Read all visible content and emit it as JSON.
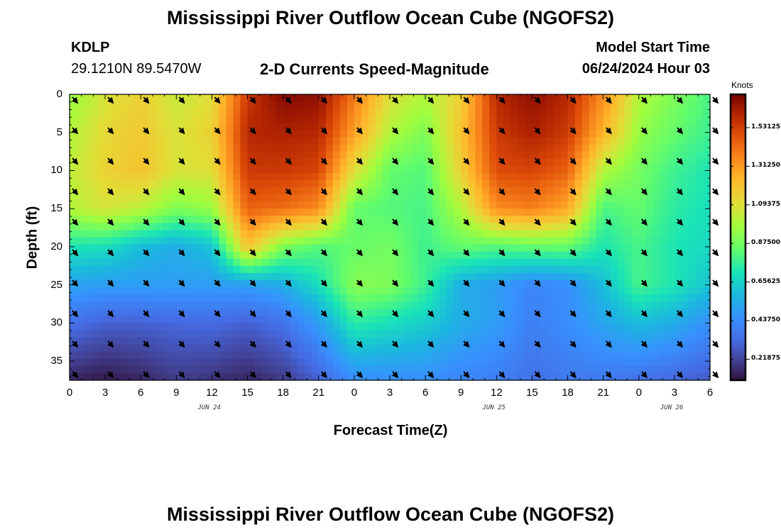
{
  "header": {
    "title": "Mississippi River Outflow Ocean Cube (NGOFS2)",
    "station": "KDLP",
    "coords": "29.1210N  89.5470W",
    "subtitle": "2-D Currents Speed-Magnitude",
    "model_start_label": "Model Start Time",
    "model_start_value": "06/24/2024 Hour 03"
  },
  "footer": {
    "title": "Mississippi River Outflow Ocean Cube (NGOFS2)"
  },
  "chart_data": {
    "type": "heatmap",
    "xlabel": "Forecast Time(Z)",
    "ylabel": "Depth (ft)",
    "x_ticks": [
      "0",
      "3",
      "6",
      "9",
      "12",
      "15",
      "18",
      "21",
      "0",
      "3",
      "6",
      "9",
      "12",
      "15",
      "18",
      "21",
      "0",
      "3",
      "6"
    ],
    "x_range_hours": [
      0,
      54
    ],
    "date_labels": [
      {
        "text": "JUN 24",
        "hour": 12
      },
      {
        "text": "JUN 25",
        "hour": 36
      },
      {
        "text": "JUN 26",
        "hour": 51
      }
    ],
    "y_ticks": [
      0,
      5,
      10,
      15,
      20,
      25,
      30,
      35
    ],
    "y_range": [
      0,
      37.5
    ],
    "y_inverted": true,
    "colorbar": {
      "label": "Knots",
      "range": [
        0.1,
        1.72
      ],
      "ticks": [
        "0.21875",
        "0.43750",
        "0.65625",
        "0.87500",
        "1.09375",
        "1.31250",
        "1.53125"
      ],
      "tick_values": [
        0.21875,
        0.4375,
        0.65625,
        0.875,
        1.09375,
        1.3125,
        1.53125
      ]
    },
    "speed_profiles": [
      {
        "hour": 0,
        "depths": [
          0,
          5,
          10,
          15,
          20,
          25,
          30,
          37.5
        ],
        "speeds": [
          0.95,
          1.0,
          1.03,
          1.0,
          0.72,
          0.52,
          0.35,
          0.15
        ]
      },
      {
        "hour": 3,
        "depths": [
          0,
          5,
          10,
          15,
          20,
          25,
          30,
          37.5
        ],
        "speeds": [
          1.08,
          1.12,
          1.14,
          1.08,
          0.7,
          0.5,
          0.3,
          0.12
        ]
      },
      {
        "hour": 6,
        "depths": [
          0,
          5,
          10,
          15,
          20,
          25,
          30,
          37.5
        ],
        "speeds": [
          1.15,
          1.18,
          1.2,
          1.02,
          0.6,
          0.5,
          0.3,
          0.15
        ]
      },
      {
        "hour": 9,
        "depths": [
          0,
          5,
          10,
          15,
          20,
          25,
          30,
          37.5
        ],
        "speeds": [
          1.05,
          1.08,
          1.08,
          0.9,
          0.55,
          0.5,
          0.32,
          0.2
        ]
      },
      {
        "hour": 12,
        "depths": [
          0,
          5,
          10,
          15,
          20,
          25,
          30,
          37.5
        ],
        "speeds": [
          1.1,
          1.15,
          1.1,
          0.95,
          0.62,
          0.5,
          0.33,
          0.18
        ]
      },
      {
        "hour": 15,
        "depths": [
          0,
          5,
          10,
          15,
          20,
          25,
          30,
          37.5
        ],
        "speeds": [
          1.55,
          1.6,
          1.55,
          1.45,
          1.2,
          0.5,
          0.3,
          0.15
        ]
      },
      {
        "hour": 18,
        "depths": [
          0,
          5,
          10,
          15,
          20,
          25,
          30,
          37.5
        ],
        "speeds": [
          1.7,
          1.62,
          1.55,
          1.42,
          0.9,
          0.55,
          0.35,
          0.2
        ]
      },
      {
        "hour": 21,
        "depths": [
          0,
          5,
          10,
          15,
          20,
          25,
          30,
          37.5
        ],
        "speeds": [
          1.68,
          1.6,
          1.52,
          1.35,
          0.82,
          0.7,
          0.5,
          0.3
        ]
      },
      {
        "hour": 24,
        "depths": [
          0,
          5,
          10,
          15,
          20,
          25,
          30,
          37.5
        ],
        "speeds": [
          1.4,
          1.3,
          1.1,
          0.85,
          0.85,
          0.92,
          0.75,
          0.45
        ]
      },
      {
        "hour": 27,
        "depths": [
          0,
          5,
          10,
          15,
          20,
          25,
          30,
          37.5
        ],
        "speeds": [
          1.1,
          1.0,
          0.85,
          0.82,
          0.88,
          0.9,
          0.7,
          0.45
        ]
      },
      {
        "hour": 30,
        "depths": [
          0,
          5,
          10,
          15,
          20,
          25,
          30,
          37.5
        ],
        "speeds": [
          1.0,
          0.9,
          0.82,
          0.8,
          0.78,
          0.78,
          0.65,
          0.45
        ]
      },
      {
        "hour": 33,
        "depths": [
          0,
          5,
          10,
          15,
          20,
          25,
          30,
          37.5
        ],
        "speeds": [
          1.15,
          1.2,
          1.15,
          1.0,
          0.85,
          0.55,
          0.55,
          0.42
        ]
      },
      {
        "hour": 36,
        "depths": [
          0,
          5,
          10,
          15,
          20,
          25,
          30,
          37.5
        ],
        "speeds": [
          1.6,
          1.55,
          1.5,
          1.35,
          0.82,
          0.5,
          0.5,
          0.4
        ]
      },
      {
        "hour": 39,
        "depths": [
          0,
          5,
          10,
          15,
          20,
          25,
          30,
          37.5
        ],
        "speeds": [
          1.68,
          1.62,
          1.52,
          1.38,
          0.85,
          0.42,
          0.4,
          0.35
        ]
      },
      {
        "hour": 42,
        "depths": [
          0,
          5,
          10,
          15,
          20,
          25,
          30,
          37.5
        ],
        "speeds": [
          1.6,
          1.55,
          1.45,
          1.28,
          0.85,
          0.45,
          0.45,
          0.38
        ]
      },
      {
        "hour": 45,
        "depths": [
          0,
          5,
          10,
          15,
          20,
          25,
          30,
          37.5
        ],
        "speeds": [
          1.35,
          1.25,
          1.0,
          0.8,
          0.72,
          0.6,
          0.52,
          0.38
        ]
      },
      {
        "hour": 48,
        "depths": [
          0,
          5,
          10,
          15,
          20,
          25,
          30,
          37.5
        ],
        "speeds": [
          1.0,
          0.95,
          0.88,
          0.85,
          0.8,
          0.8,
          0.6,
          0.35
        ]
      },
      {
        "hour": 51,
        "depths": [
          0,
          5,
          10,
          15,
          20,
          25,
          30,
          37.5
        ],
        "speeds": [
          0.9,
          0.85,
          0.78,
          0.75,
          0.72,
          0.72,
          0.55,
          0.32
        ]
      },
      {
        "hour": 54,
        "depths": [
          0,
          5,
          10,
          15,
          20,
          25,
          30,
          37.5
        ],
        "speeds": [
          0.8,
          0.78,
          0.72,
          0.7,
          0.68,
          0.62,
          0.45,
          0.28
        ]
      }
    ],
    "vector_grid": {
      "hours": [
        0,
        3,
        6,
        9,
        12,
        15,
        18,
        21,
        24,
        27,
        30,
        33,
        36,
        39,
        42,
        45,
        48,
        51,
        54
      ],
      "depths": [
        0,
        4,
        8,
        12,
        16,
        20,
        24,
        28,
        32,
        36
      ],
      "direction": "southeast"
    }
  }
}
